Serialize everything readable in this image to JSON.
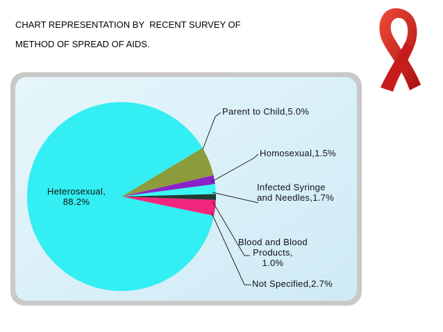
{
  "chart_data": {
    "type": "pie",
    "title": "CHART REPRESENTATION BY  RECENT SURVEY OF\nMETHOD OF SPREAD OF AIDS.",
    "categories": [
      "Heterosexual,",
      "Parent to Child,",
      "Homosexual,",
      "Infected Syringe\nand Needles,",
      "Blood and Blood\nProducts,",
      "Not Specified,"
    ],
    "values": [
      88.2,
      5.0,
      1.5,
      1.7,
      1.0,
      2.7
    ],
    "value_labels": [
      "88.2%",
      "5.0%",
      "1.5%",
      "1.7%",
      "1.0%",
      "2.7%"
    ],
    "colors": [
      "#33eef2",
      "#8c9b3c",
      "#8a22c6",
      "#3cf6f4",
      "#1e3d33",
      "#f2267c"
    ]
  }
}
